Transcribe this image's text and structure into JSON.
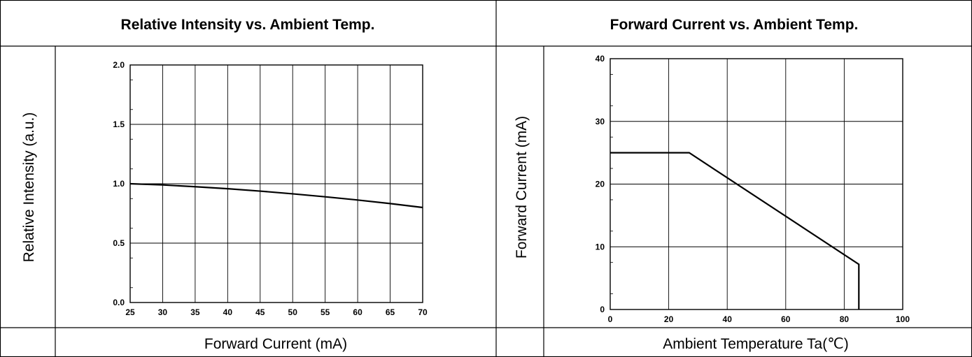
{
  "panels": [
    {
      "title": "Relative Intensity vs. Ambient Temp."
    },
    {
      "title": "Forward Current vs. Ambient Temp."
    }
  ],
  "chart_data": [
    {
      "type": "line",
      "title": "Relative Intensity vs. Ambient Temp.",
      "xlabel": "Forward Current (mA)",
      "ylabel": "Relative Intensity (a.u.)",
      "xlim": [
        25,
        70
      ],
      "ylim": [
        0.0,
        2.0
      ],
      "xticks": [
        "25",
        "30",
        "35",
        "40",
        "45",
        "50",
        "55",
        "60",
        "65",
        "70"
      ],
      "yticks": [
        "0.0",
        "0.5",
        "1.0",
        "1.5",
        "2.0"
      ],
      "grid": true,
      "series": [
        {
          "x": [
            25,
            30,
            35,
            40,
            45,
            50,
            55,
            60,
            65,
            70
          ],
          "y": [
            1.0,
            0.99,
            0.975,
            0.958,
            0.938,
            0.915,
            0.89,
            0.863,
            0.833,
            0.8
          ]
        }
      ]
    },
    {
      "type": "line",
      "title": "Forward Current vs. Ambient Temp.",
      "xlabel": "Ambient Temperature Ta(℃)",
      "ylabel": "Forward Current (mA)",
      "xlim": [
        0,
        100
      ],
      "ylim": [
        0,
        40
      ],
      "xticks": [
        "0",
        "20",
        "40",
        "60",
        "80",
        "100"
      ],
      "yticks": [
        "0",
        "10",
        "20",
        "30",
        "40"
      ],
      "grid": true,
      "series": [
        {
          "x": [
            0,
            27,
            85,
            85
          ],
          "y": [
            25,
            25,
            7.2,
            0
          ]
        }
      ]
    }
  ]
}
